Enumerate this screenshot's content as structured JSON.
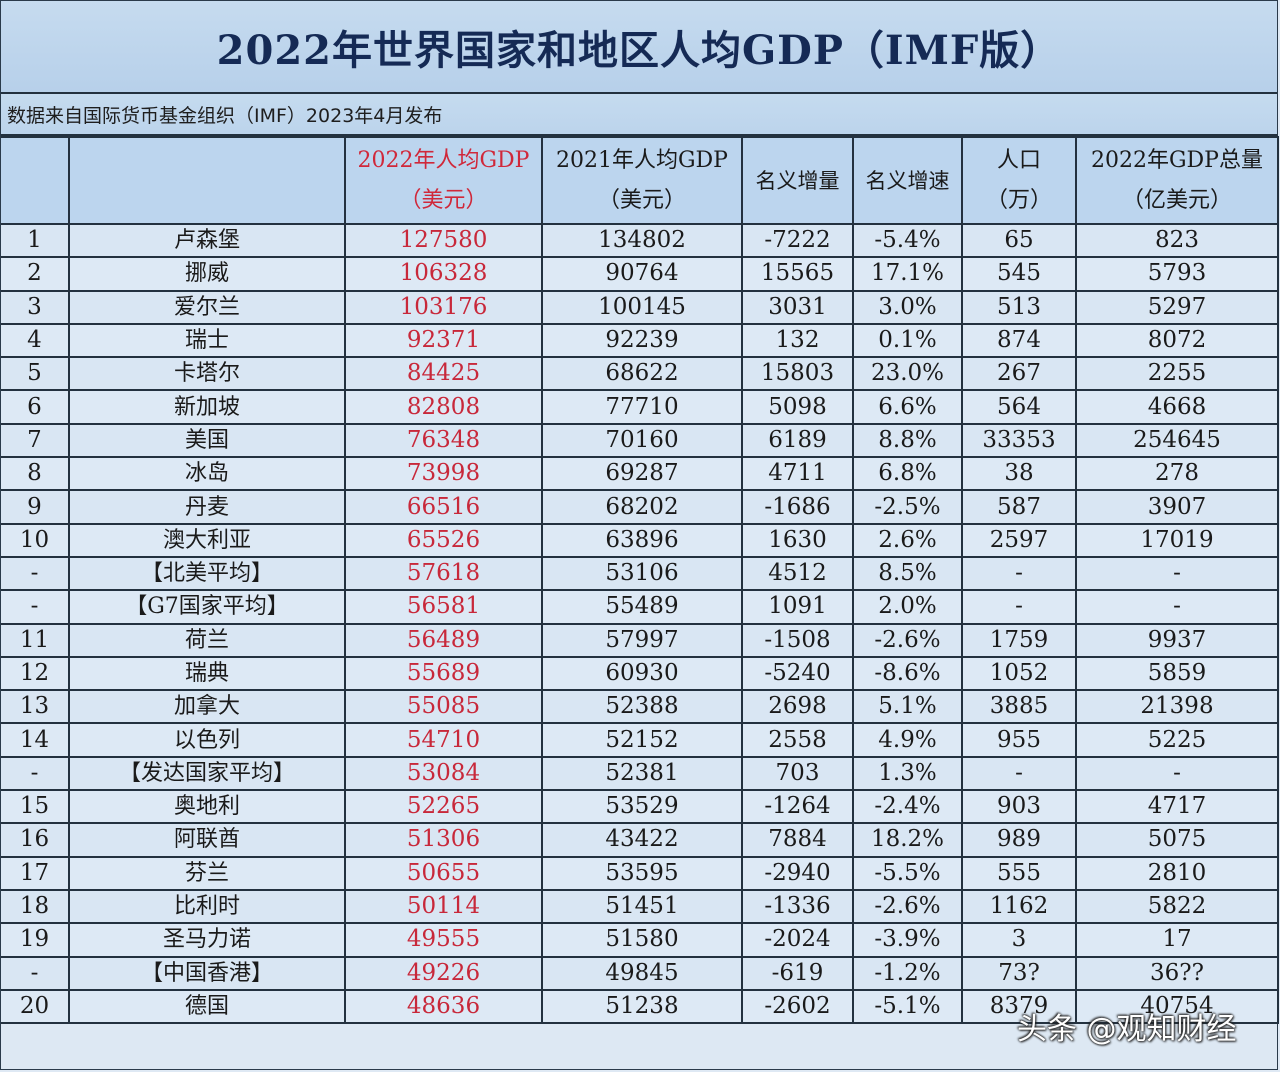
{
  "title": "2022年世界国家和地区人均GDP（IMF版）",
  "source": "数据来自国际货币基金组织（IMF）2023年4月发布",
  "headers": {
    "rank": "",
    "name": "",
    "gdp2022": {
      "line1": "2022年人均GDP",
      "line2": "（美元）"
    },
    "gdp2021": {
      "line1": "2021年人均GDP",
      "line2": "（美元）"
    },
    "increase": "名义增量",
    "growth": "名义增速",
    "population": {
      "line1": "人口",
      "line2": "（万）"
    },
    "total": {
      "line1": "2022年GDP总量",
      "line2": "（亿美元）"
    }
  },
  "colors": {
    "highlight": "#c8283a",
    "title": "#152a55",
    "header_bg": "#bcd5ee"
  },
  "rows": [
    {
      "rank": "1",
      "name": "卢森堡",
      "gdp2022": "127580",
      "gdp2021": "134802",
      "increase": "-7222",
      "growth": "-5.4%",
      "population": "65",
      "total": "823"
    },
    {
      "rank": "2",
      "name": "挪威",
      "gdp2022": "106328",
      "gdp2021": "90764",
      "increase": "15565",
      "growth": "17.1%",
      "population": "545",
      "total": "5793"
    },
    {
      "rank": "3",
      "name": "爱尔兰",
      "gdp2022": "103176",
      "gdp2021": "100145",
      "increase": "3031",
      "growth": "3.0%",
      "population": "513",
      "total": "5297"
    },
    {
      "rank": "4",
      "name": "瑞士",
      "gdp2022": "92371",
      "gdp2021": "92239",
      "increase": "132",
      "growth": "0.1%",
      "population": "874",
      "total": "8072"
    },
    {
      "rank": "5",
      "name": "卡塔尔",
      "gdp2022": "84425",
      "gdp2021": "68622",
      "increase": "15803",
      "growth": "23.0%",
      "population": "267",
      "total": "2255"
    },
    {
      "rank": "6",
      "name": "新加坡",
      "gdp2022": "82808",
      "gdp2021": "77710",
      "increase": "5098",
      "growth": "6.6%",
      "population": "564",
      "total": "4668"
    },
    {
      "rank": "7",
      "name": "美国",
      "gdp2022": "76348",
      "gdp2021": "70160",
      "increase": "6189",
      "growth": "8.8%",
      "population": "33353",
      "total": "254645"
    },
    {
      "rank": "8",
      "name": "冰岛",
      "gdp2022": "73998",
      "gdp2021": "69287",
      "increase": "4711",
      "growth": "6.8%",
      "population": "38",
      "total": "278"
    },
    {
      "rank": "9",
      "name": "丹麦",
      "gdp2022": "66516",
      "gdp2021": "68202",
      "increase": "-1686",
      "growth": "-2.5%",
      "population": "587",
      "total": "3907"
    },
    {
      "rank": "10",
      "name": "澳大利亚",
      "gdp2022": "65526",
      "gdp2021": "63896",
      "increase": "1630",
      "growth": "2.6%",
      "population": "2597",
      "total": "17019"
    },
    {
      "rank": "-",
      "name": "【北美平均】",
      "gdp2022": "57618",
      "gdp2021": "53106",
      "increase": "4512",
      "growth": "8.5%",
      "population": "-",
      "total": "-"
    },
    {
      "rank": "-",
      "name": "【G7国家平均】",
      "gdp2022": "56581",
      "gdp2021": "55489",
      "increase": "1091",
      "growth": "2.0%",
      "population": "-",
      "total": "-"
    },
    {
      "rank": "11",
      "name": "荷兰",
      "gdp2022": "56489",
      "gdp2021": "57997",
      "increase": "-1508",
      "growth": "-2.6%",
      "population": "1759",
      "total": "9937"
    },
    {
      "rank": "12",
      "name": "瑞典",
      "gdp2022": "55689",
      "gdp2021": "60930",
      "increase": "-5240",
      "growth": "-8.6%",
      "population": "1052",
      "total": "5859"
    },
    {
      "rank": "13",
      "name": "加拿大",
      "gdp2022": "55085",
      "gdp2021": "52388",
      "increase": "2698",
      "growth": "5.1%",
      "population": "3885",
      "total": "21398"
    },
    {
      "rank": "14",
      "name": "以色列",
      "gdp2022": "54710",
      "gdp2021": "52152",
      "increase": "2558",
      "growth": "4.9%",
      "population": "955",
      "total": "5225"
    },
    {
      "rank": "-",
      "name": "【发达国家平均】",
      "gdp2022": "53084",
      "gdp2021": "52381",
      "increase": "703",
      "growth": "1.3%",
      "population": "-",
      "total": "-"
    },
    {
      "rank": "15",
      "name": "奥地利",
      "gdp2022": "52265",
      "gdp2021": "53529",
      "increase": "-1264",
      "growth": "-2.4%",
      "population": "903",
      "total": "4717"
    },
    {
      "rank": "16",
      "name": "阿联酋",
      "gdp2022": "51306",
      "gdp2021": "43422",
      "increase": "7884",
      "growth": "18.2%",
      "population": "989",
      "total": "5075"
    },
    {
      "rank": "17",
      "name": "芬兰",
      "gdp2022": "50655",
      "gdp2021": "53595",
      "increase": "-2940",
      "growth": "-5.5%",
      "population": "555",
      "total": "2810"
    },
    {
      "rank": "18",
      "name": "比利时",
      "gdp2022": "50114",
      "gdp2021": "51451",
      "increase": "-1336",
      "growth": "-2.6%",
      "population": "1162",
      "total": "5822"
    },
    {
      "rank": "19",
      "name": "圣马力诺",
      "gdp2022": "49555",
      "gdp2021": "51580",
      "increase": "-2024",
      "growth": "-3.9%",
      "population": "3",
      "total": "17"
    },
    {
      "rank": "-",
      "name": "【中国香港】",
      "gdp2022": "49226",
      "gdp2021": "49845",
      "increase": "-619",
      "growth": "-1.2%",
      "population": "73?",
      "total": "36??"
    },
    {
      "rank": "20",
      "name": "德国",
      "gdp2022": "48636",
      "gdp2021": "51238",
      "increase": "-2602",
      "growth": "-5.1%",
      "population": "8379",
      "total": "40754"
    }
  ],
  "watermark": "头条 @观知财经"
}
